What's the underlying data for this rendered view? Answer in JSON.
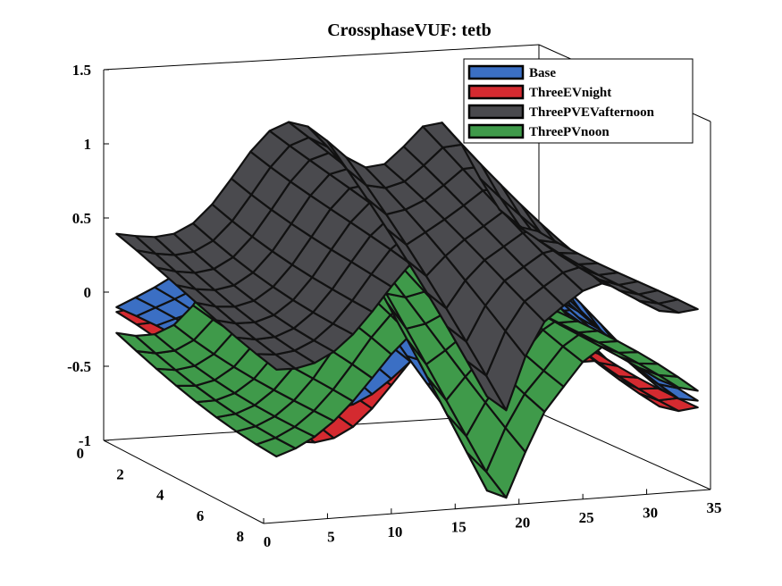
{
  "chart_data": {
    "type": "surface",
    "title": "CrossphaseVUF: tetb",
    "x_ticks": [
      "0",
      "5",
      "10",
      "15",
      "20",
      "25",
      "30",
      "35"
    ],
    "y_ticks": [
      "0",
      "2",
      "4",
      "6",
      "8"
    ],
    "z_ticks": [
      "1.5",
      "1",
      "0.5",
      "0",
      "-0.5",
      "-1"
    ],
    "xlim": [
      0,
      35
    ],
    "ylim": [
      0,
      8
    ],
    "zlim": [
      -1,
      1.5
    ],
    "legend_position": "top-right",
    "series": [
      {
        "name": "Base",
        "color": "#3b6fc4",
        "z_peak": 0.6,
        "z_base": -0.55
      },
      {
        "name": "ThreeEVnight",
        "color": "#d42a30",
        "z_peak": 0.55,
        "z_base": -0.7
      },
      {
        "name": "ThreePVEVafternoon",
        "color": "#4a4a4e",
        "z_peak": 1.1,
        "z_base": -0.15
      },
      {
        "name": "ThreePVnoon",
        "color": "#3f9a4a",
        "z_peak": 0.7,
        "z_base": -0.8
      }
    ]
  }
}
